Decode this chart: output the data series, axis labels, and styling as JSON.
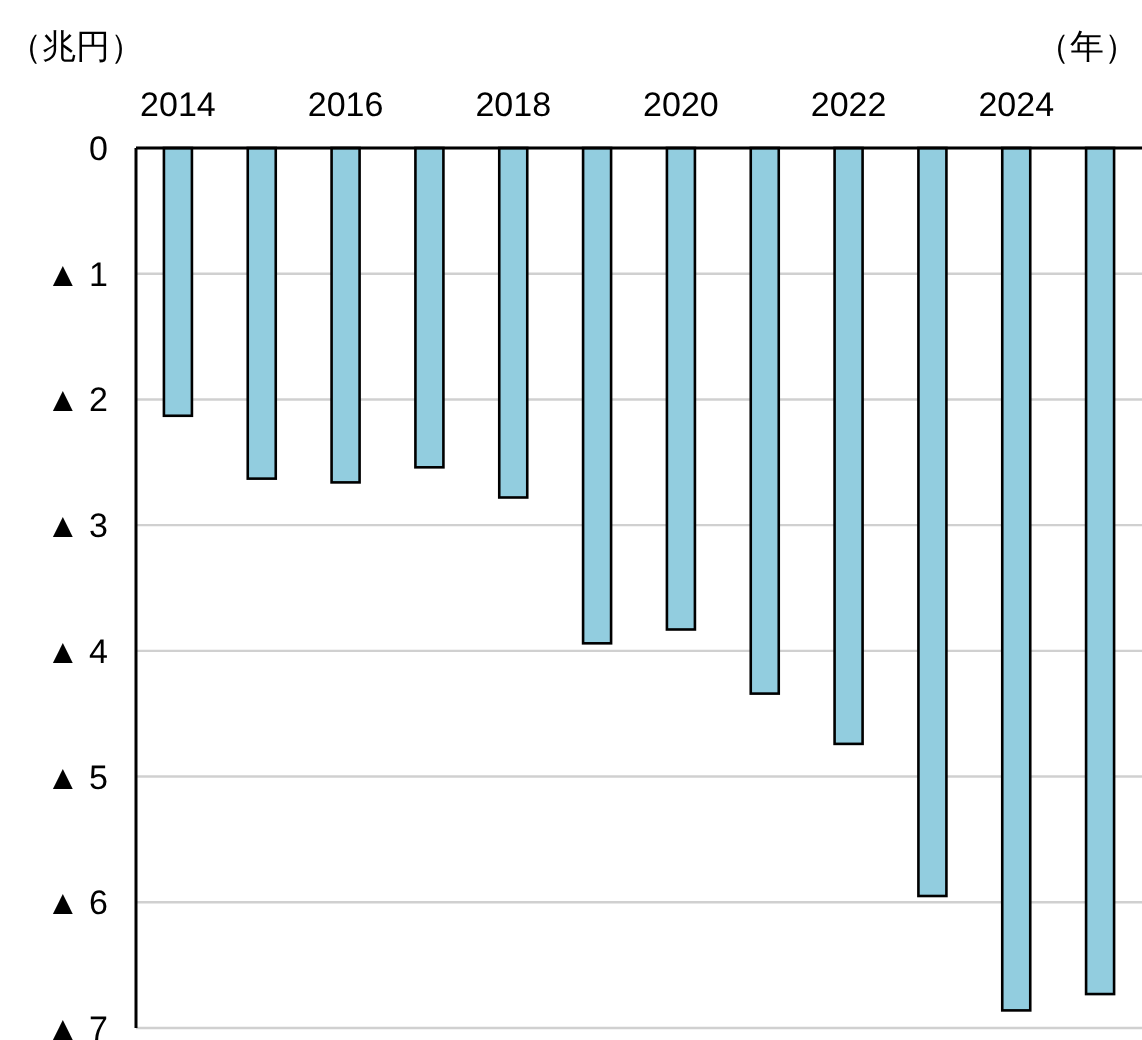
{
  "chart_data": {
    "type": "bar",
    "xlabel": "（年）",
    "ylabel": "（兆円）",
    "categories": [
      "2014",
      null,
      "2016",
      null,
      "2018",
      null,
      "2020",
      null,
      "2022",
      null,
      "2024",
      null
    ],
    "values": [
      -2.13,
      -2.63,
      -2.66,
      -2.54,
      -2.78,
      -3.94,
      -3.83,
      -4.34,
      -4.74,
      -5.95,
      -6.86,
      -6.73
    ],
    "color": "#92cddf",
    "ylim": [
      -7,
      0
    ],
    "yticks": [
      0,
      {
        "value": -1,
        "label": "▲ 1"
      },
      {
        "value": -2,
        "label": "▲ 2"
      },
      {
        "value": -3,
        "label": "▲ 3"
      },
      {
        "value": -4,
        "label": "▲ 4"
      },
      {
        "value": -5,
        "label": "▲ 5"
      },
      {
        "value": -6,
        "label": "▲ 6"
      },
      {
        "value": -7,
        "label": "▲ 7"
      }
    ],
    "grid": "y"
  }
}
